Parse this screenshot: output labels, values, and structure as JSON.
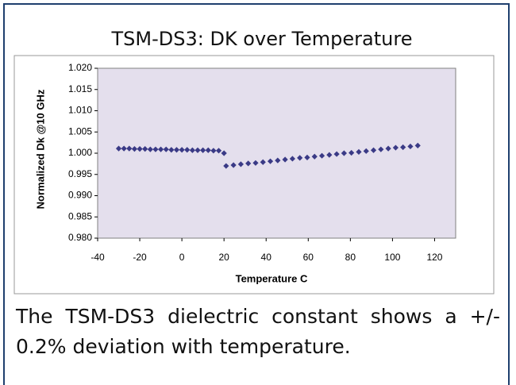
{
  "chart_data": {
    "type": "scatter",
    "title": "TSM-DS3: DK over Temperature",
    "x_label": "Temperature C",
    "y_label": "Normalized Dk @10 GHz",
    "x": [
      -30,
      -27.5,
      -25,
      -22.5,
      -20,
      -17.5,
      -15,
      -12.5,
      -10,
      -7.5,
      -5,
      -2.5,
      0,
      2.5,
      5,
      7.5,
      10,
      12.5,
      15,
      17.5,
      20,
      21,
      24.5,
      28,
      31.5,
      35,
      38.5,
      42,
      45.5,
      49,
      52.5,
      56,
      59.5,
      63,
      66.5,
      70,
      73.5,
      77,
      80.5,
      84,
      87.5,
      91,
      94.5,
      98,
      101.5,
      105,
      108.5,
      112
    ],
    "values": [
      1.0011,
      1.0011,
      1.0011,
      1.001,
      1.001,
      1.001,
      1.0009,
      1.0009,
      1.0009,
      1.0009,
      1.0008,
      1.0008,
      1.0008,
      1.0008,
      1.0007,
      1.0007,
      1.0007,
      1.0007,
      1.0006,
      1.0006,
      1.0,
      0.997,
      0.9972,
      0.9974,
      0.9976,
      0.9977,
      0.9979,
      0.9981,
      0.9983,
      0.9985,
      0.9987,
      0.9989,
      0.999,
      0.9992,
      0.9994,
      0.9996,
      0.9998,
      1.0,
      1.0001,
      1.0003,
      1.0005,
      1.0007,
      1.0009,
      1.0011,
      1.0013,
      1.0014,
      1.0016,
      1.0018
    ],
    "color": "#3a3a86",
    "xlim": [
      -40,
      130
    ],
    "xticks": [
      -40,
      -20,
      0,
      20,
      40,
      60,
      80,
      100,
      120
    ],
    "ylim": [
      0.98,
      1.02
    ],
    "yticks": [
      {
        "value": 0.98,
        "label": "0.980"
      },
      {
        "value": 0.985,
        "label": "0.985"
      },
      {
        "value": 0.99,
        "label": "0.990"
      },
      {
        "value": 0.995,
        "label": "0.995"
      },
      {
        "value": 1,
        "label": "1.000"
      },
      {
        "value": 1.005,
        "label": "1.005"
      },
      {
        "value": 1.01,
        "label": "1.010"
      },
      {
        "value": 1.015,
        "label": "1.015"
      },
      {
        "value": 1.02,
        "label": "1.020"
      }
    ],
    "plot_background": "#e4dfed"
  },
  "caption": "The TSM-DS3 dielectric constant shows a +/- 0.2% deviation with temperature."
}
